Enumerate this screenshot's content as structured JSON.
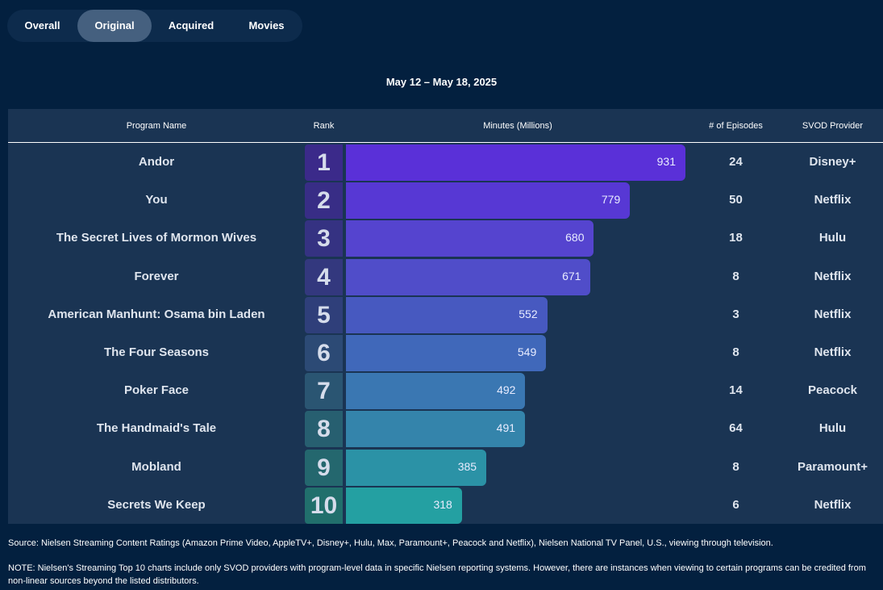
{
  "tabs": [
    {
      "label": "Overall",
      "active": false
    },
    {
      "label": "Original",
      "active": true
    },
    {
      "label": "Acquired",
      "active": false
    },
    {
      "label": "Movies",
      "active": false
    }
  ],
  "date_range": "May 12 – May 18, 2025",
  "headers": {
    "program": "Program Name",
    "rank": "Rank",
    "minutes": "Minutes (Millions)",
    "episodes": "# of Episodes",
    "provider": "SVOD Provider"
  },
  "chart_data": {
    "type": "bar",
    "orientation": "horizontal",
    "xlabel": "Minutes (Millions)",
    "categories": [
      "Andor",
      "You",
      "The Secret Lives of Mormon Wives",
      "Forever",
      "American Manhunt: Osama bin Laden",
      "The Four Seasons",
      "Poker Face",
      "The Handmaid's Tale",
      "Mobland",
      "Secrets We Keep"
    ],
    "values": [
      931,
      779,
      680,
      671,
      552,
      549,
      492,
      491,
      385,
      318
    ],
    "rows": [
      {
        "rank": "1",
        "program": "Andor",
        "minutes": "931",
        "episodes": "24",
        "provider": "Disney+"
      },
      {
        "rank": "2",
        "program": "You",
        "minutes": "779",
        "episodes": "50",
        "provider": "Netflix"
      },
      {
        "rank": "3",
        "program": "The Secret Lives of Mormon Wives",
        "minutes": "680",
        "episodes": "18",
        "provider": "Hulu"
      },
      {
        "rank": "4",
        "program": "Forever",
        "minutes": "671",
        "episodes": "8",
        "provider": "Netflix"
      },
      {
        "rank": "5",
        "program": "American Manhunt: Osama bin Laden",
        "minutes": "552",
        "episodes": "3",
        "provider": "Netflix"
      },
      {
        "rank": "6",
        "program": "The Four Seasons",
        "minutes": "549",
        "episodes": "8",
        "provider": "Netflix"
      },
      {
        "rank": "7",
        "program": "Poker Face",
        "minutes": "492",
        "episodes": "14",
        "provider": "Peacock"
      },
      {
        "rank": "8",
        "program": "The Handmaid's Tale",
        "minutes": "491",
        "episodes": "64",
        "provider": "Hulu"
      },
      {
        "rank": "9",
        "program": "Mobland",
        "minutes": "385",
        "episodes": "8",
        "provider": "Paramount+"
      },
      {
        "rank": "10",
        "program": "Secrets We Keep",
        "minutes": "318",
        "episodes": "6",
        "provider": "Netflix"
      }
    ],
    "bar_colors": [
      "#5a30d8",
      "#5738d4",
      "#5544cf",
      "#504dc9",
      "#4759c0",
      "#4068ba",
      "#3a77b2",
      "#3484ab",
      "#2b92a6",
      "#24a0a2"
    ],
    "rank_colors": [
      "#3b2a8a",
      "#382d86",
      "#353282",
      "#33387e",
      "#2f3f7a",
      "#2c4a75",
      "#2a5572",
      "#275f70",
      "#24676e",
      "#216f6c"
    ]
  },
  "footer": {
    "source": "Source: Nielsen Streaming Content Ratings (Amazon Prime Video, AppleTV+, Disney+, Hulu, Max, Paramount+, Peacock and Netflix), Nielsen National TV Panel, U.S., viewing through television.",
    "note": "NOTE: Nielsen's Streaming Top 10 charts include only SVOD providers with program-level data in specific Nielsen reporting systems. However, there are instances when viewing to certain programs can be credited from non-linear sources beyond the listed distributors."
  }
}
